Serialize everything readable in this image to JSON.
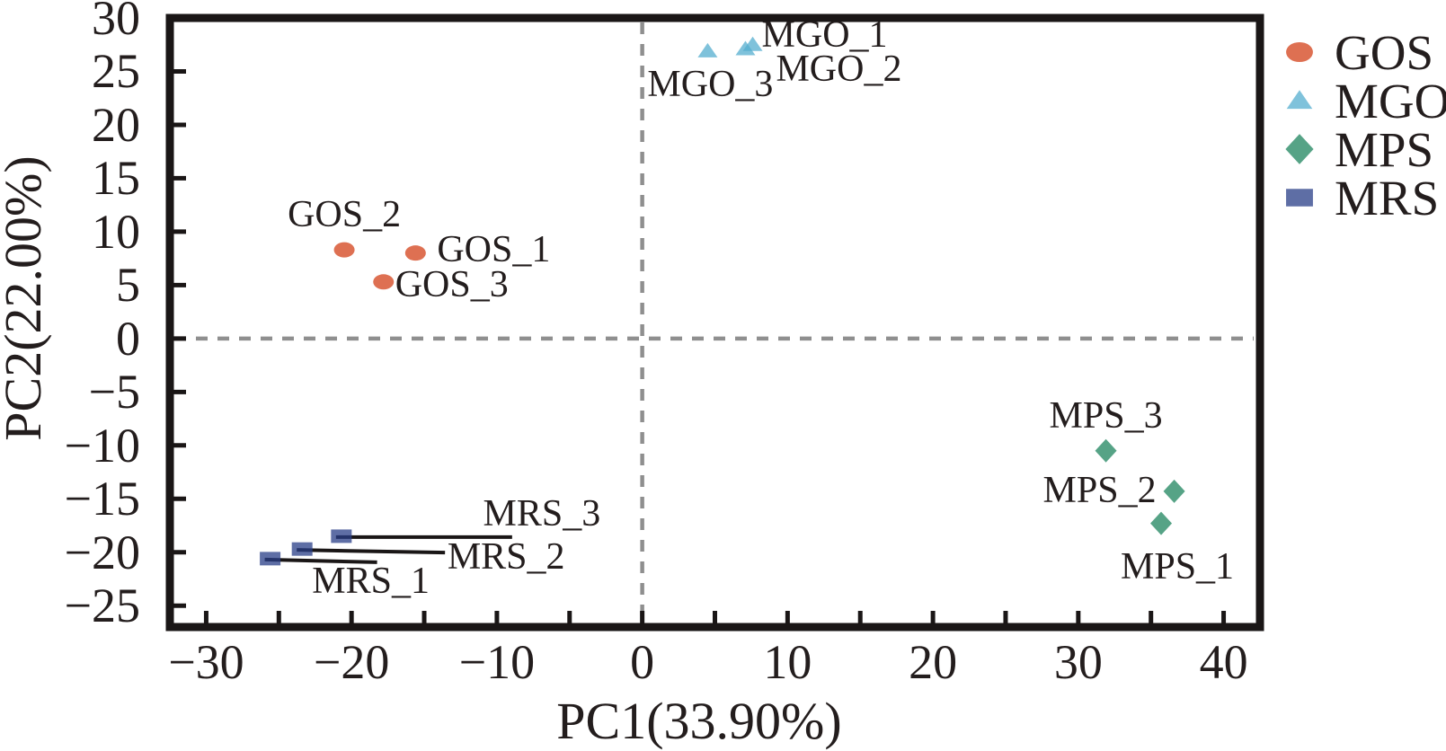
{
  "chart_data": {
    "type": "scatter",
    "title": "",
    "xlabel": "PC1(33.90%)",
    "ylabel": "PC2(22.00%)",
    "xlim": [
      -32.5,
      42.5
    ],
    "ylim": [
      -27,
      30
    ],
    "x_major_ticks": [
      -30,
      -20,
      -10,
      0,
      10,
      20,
      30,
      40
    ],
    "x_minor_ticks": [
      -25,
      -15,
      -5,
      5,
      15,
      25,
      35
    ],
    "y_ticks": [
      30,
      25,
      20,
      15,
      10,
      5,
      0,
      -5,
      -10,
      -15,
      -20,
      -25
    ],
    "grid": false,
    "zero_lines": {
      "style": "dashed",
      "color": "#8f8f8f"
    },
    "axis_color": "#1a1616",
    "text_color": "#231d1d",
    "marker_opacity": 0.75,
    "legend": {
      "position": "outside-top-right",
      "entries": [
        {
          "label": "GOS",
          "marker": "ellipse",
          "color": "#D34018"
        },
        {
          "label": "MGO",
          "marker": "triangle",
          "color": "#54ADCF"
        },
        {
          "label": "MPS",
          "marker": "diamond",
          "color": "#1D845D"
        },
        {
          "label": "MRS",
          "marker": "square",
          "color": "#283D87"
        }
      ]
    },
    "series": [
      {
        "name": "GOS",
        "marker": "ellipse",
        "color": "#D34018",
        "points": [
          {
            "label": "GOS_1",
            "x": -15.6,
            "y": 8.0,
            "label_offset": [
              87,
              -4
            ]
          },
          {
            "label": "GOS_2",
            "x": -20.5,
            "y": 8.3,
            "label_offset": [
              0,
              -39
            ]
          },
          {
            "label": "GOS_3",
            "x": -17.8,
            "y": 5.3,
            "label_offset": [
              76,
              3
            ]
          }
        ]
      },
      {
        "name": "MGO",
        "marker": "triangle",
        "color": "#54ADCF",
        "points": [
          {
            "label": "MGO_1",
            "x": 7.6,
            "y": 27.5,
            "label_offset": [
              80,
              -11
            ]
          },
          {
            "label": "MGO_2",
            "x": 7.1,
            "y": 27.1,
            "label_offset": [
              104,
              23
            ]
          },
          {
            "label": "MGO_3",
            "x": 4.5,
            "y": 26.9,
            "label_offset": [
              3,
              37
            ]
          }
        ]
      },
      {
        "name": "MPS",
        "marker": "diamond",
        "color": "#1D845D",
        "points": [
          {
            "label": "MPS_1",
            "x": 35.7,
            "y": -17.3,
            "label_offset": [
              18,
              48
            ]
          },
          {
            "label": "MPS_2",
            "x": 36.6,
            "y": -14.3,
            "label_offset": [
              -83,
              -1
            ]
          },
          {
            "label": "MPS_3",
            "x": 31.9,
            "y": -10.5,
            "label_offset": [
              0,
              -39
            ]
          }
        ]
      },
      {
        "name": "MRS",
        "marker": "square",
        "color": "#283D87",
        "points": [
          {
            "label": "MRS_1",
            "x": -25.6,
            "y": -20.6,
            "label_offset": [
              112,
              25
            ],
            "leader_end": [
              119,
              4
            ]
          },
          {
            "label": "MRS_2",
            "x": -23.4,
            "y": -19.7,
            "label_offset": [
              227,
              9
            ],
            "leader_end": [
              159,
              4
            ]
          },
          {
            "label": "MRS_3",
            "x": -20.7,
            "y": -18.5,
            "label_offset": [
              223,
              -25
            ],
            "leader_end": [
              190,
              1
            ]
          }
        ]
      }
    ]
  }
}
